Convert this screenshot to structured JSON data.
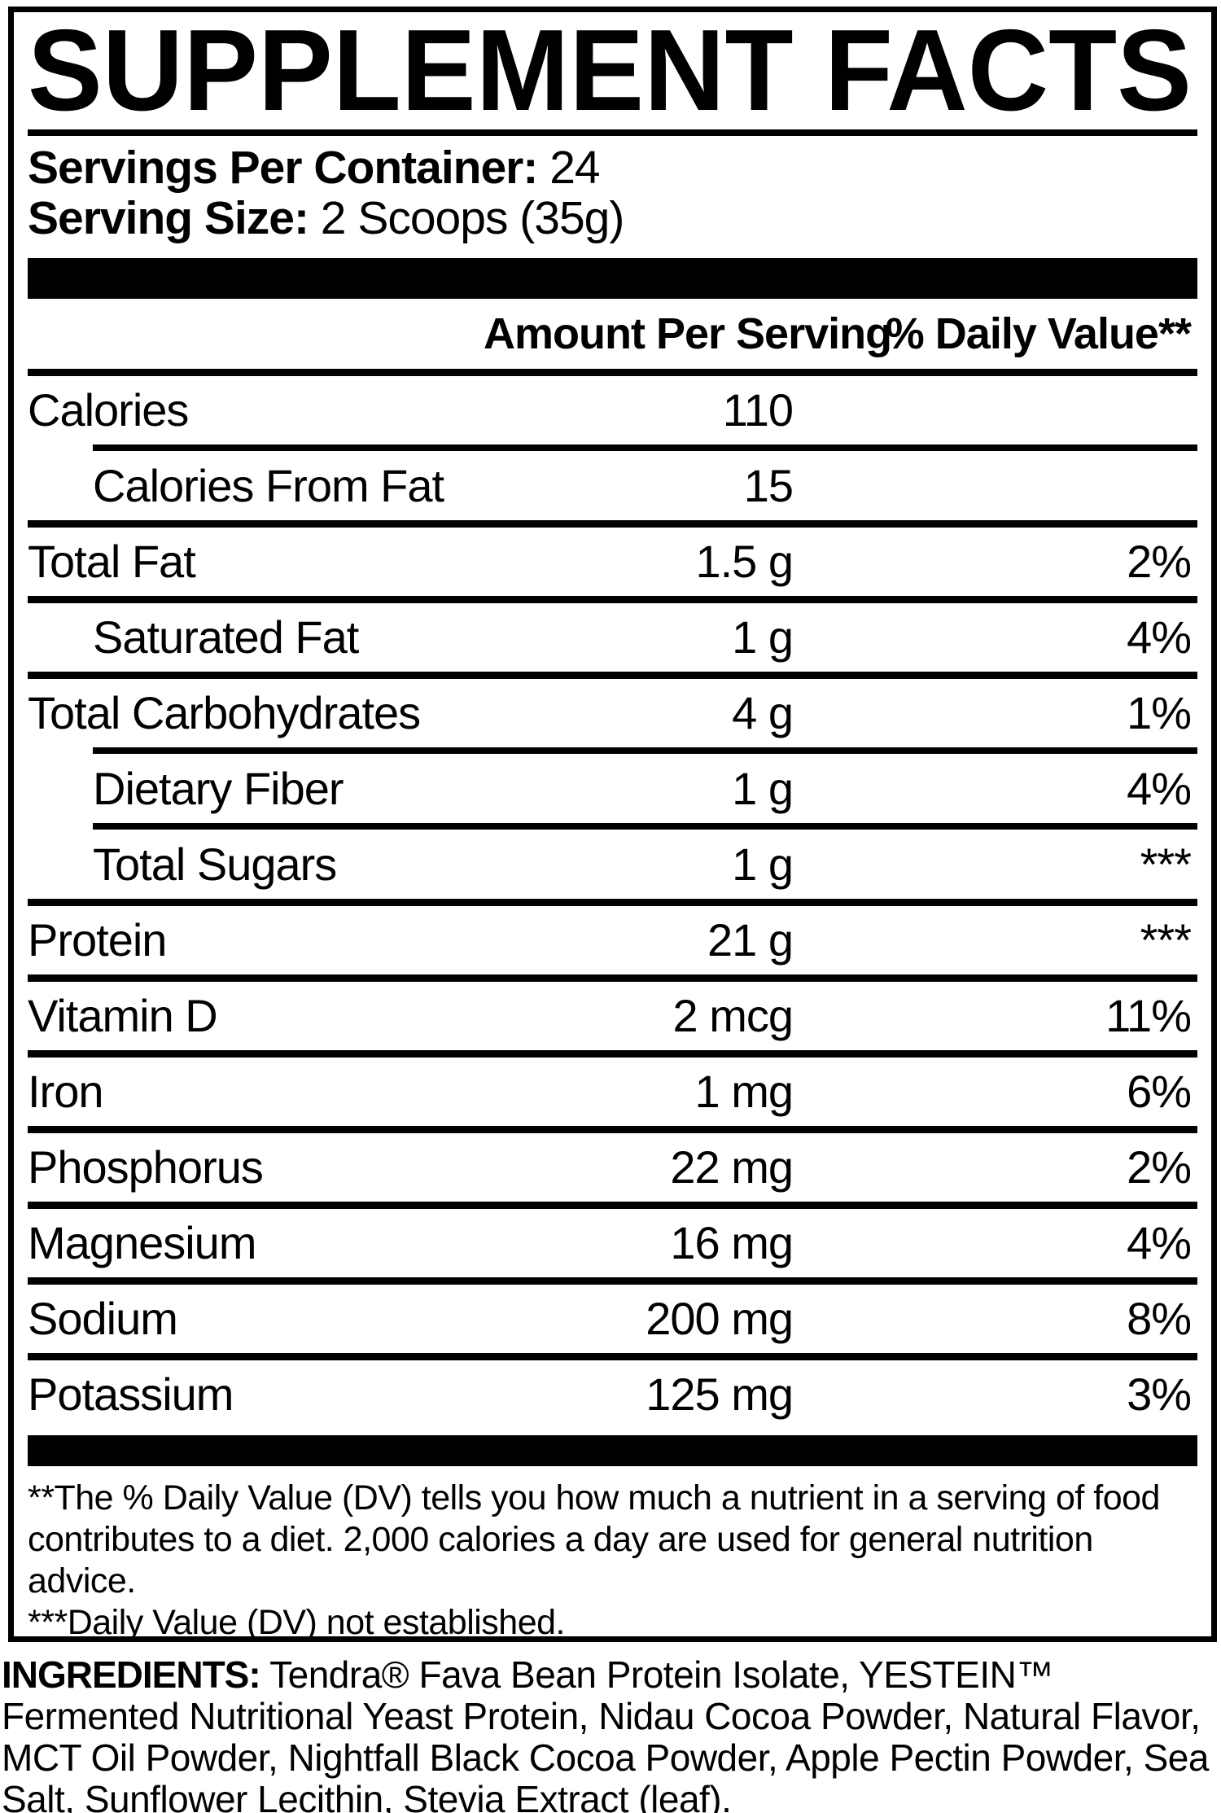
{
  "label": {
    "title": "SUPPLEMENT FACTS",
    "servings_per_container": {
      "label": "Servings Per Container:",
      "value": "24"
    },
    "serving_size": {
      "label": "Serving Size:",
      "value": "2 Scoops (35g)"
    },
    "table": {
      "headers": {
        "amount": "Amount Per Serving",
        "daily_value": "% Daily Value**"
      },
      "rows": [
        {
          "name": "Calories",
          "amount": "110",
          "dv": "",
          "indent": false,
          "sep_indented": false
        },
        {
          "name": "Calories From Fat",
          "amount": "15",
          "dv": "",
          "indent": true,
          "sep_indented": true
        },
        {
          "name": "Total Fat",
          "amount": "1.5 g",
          "dv": "2%",
          "indent": false,
          "sep_indented": false
        },
        {
          "name": "Saturated Fat",
          "amount": "1 g",
          "dv": "4%",
          "indent": true,
          "sep_indented": false
        },
        {
          "name": "Total Carbohydrates",
          "amount": "4 g",
          "dv": "1%",
          "indent": false,
          "sep_indented": false
        },
        {
          "name": "Dietary Fiber",
          "amount": "1 g",
          "dv": "4%",
          "indent": true,
          "sep_indented": true
        },
        {
          "name": "Total Sugars",
          "amount": "1 g",
          "dv": "***",
          "indent": true,
          "sep_indented": true
        },
        {
          "name": "Protein",
          "amount": "21 g",
          "dv": "***",
          "indent": false,
          "sep_indented": false
        },
        {
          "name": "Vitamin D",
          "amount": "2 mcg",
          "dv": "11%",
          "indent": false,
          "sep_indented": false
        },
        {
          "name": "Iron",
          "amount": "1 mg",
          "dv": "6%",
          "indent": false,
          "sep_indented": false
        },
        {
          "name": "Phosphorus",
          "amount": "22 mg",
          "dv": "2%",
          "indent": false,
          "sep_indented": false
        },
        {
          "name": "Magnesium",
          "amount": "16 mg",
          "dv": "4%",
          "indent": false,
          "sep_indented": false
        },
        {
          "name": "Sodium",
          "amount": "200 mg",
          "dv": "8%",
          "indent": false,
          "sep_indented": false
        },
        {
          "name": "Potassium",
          "amount": "125 mg",
          "dv": "3%",
          "indent": false,
          "sep_indented": false
        }
      ]
    },
    "footnotes": {
      "daily_value": "**The % Daily Value (DV) tells you how much a nutrient in a serving of food contributes to a diet. 2,000 calories a day are used for general nutrition advice.",
      "not_established": "***Daily Value (DV) not established."
    }
  },
  "ingredients": {
    "label": "INGREDIENTS:",
    "text": "Tendra® Fava Bean Protein Isolate, YESTEIN™ Fermented Nutritional Yeast Protein, Nidau Cocoa Powder, Natural Flavor, MCT Oil Powder, Nightfall Black Cocoa Powder, Apple Pectin Powder, Sea Salt, Sunflower Lecithin, Stevia Extract (leaf)."
  },
  "colors": {
    "ink": "#000000",
    "background": "#ffffff"
  }
}
